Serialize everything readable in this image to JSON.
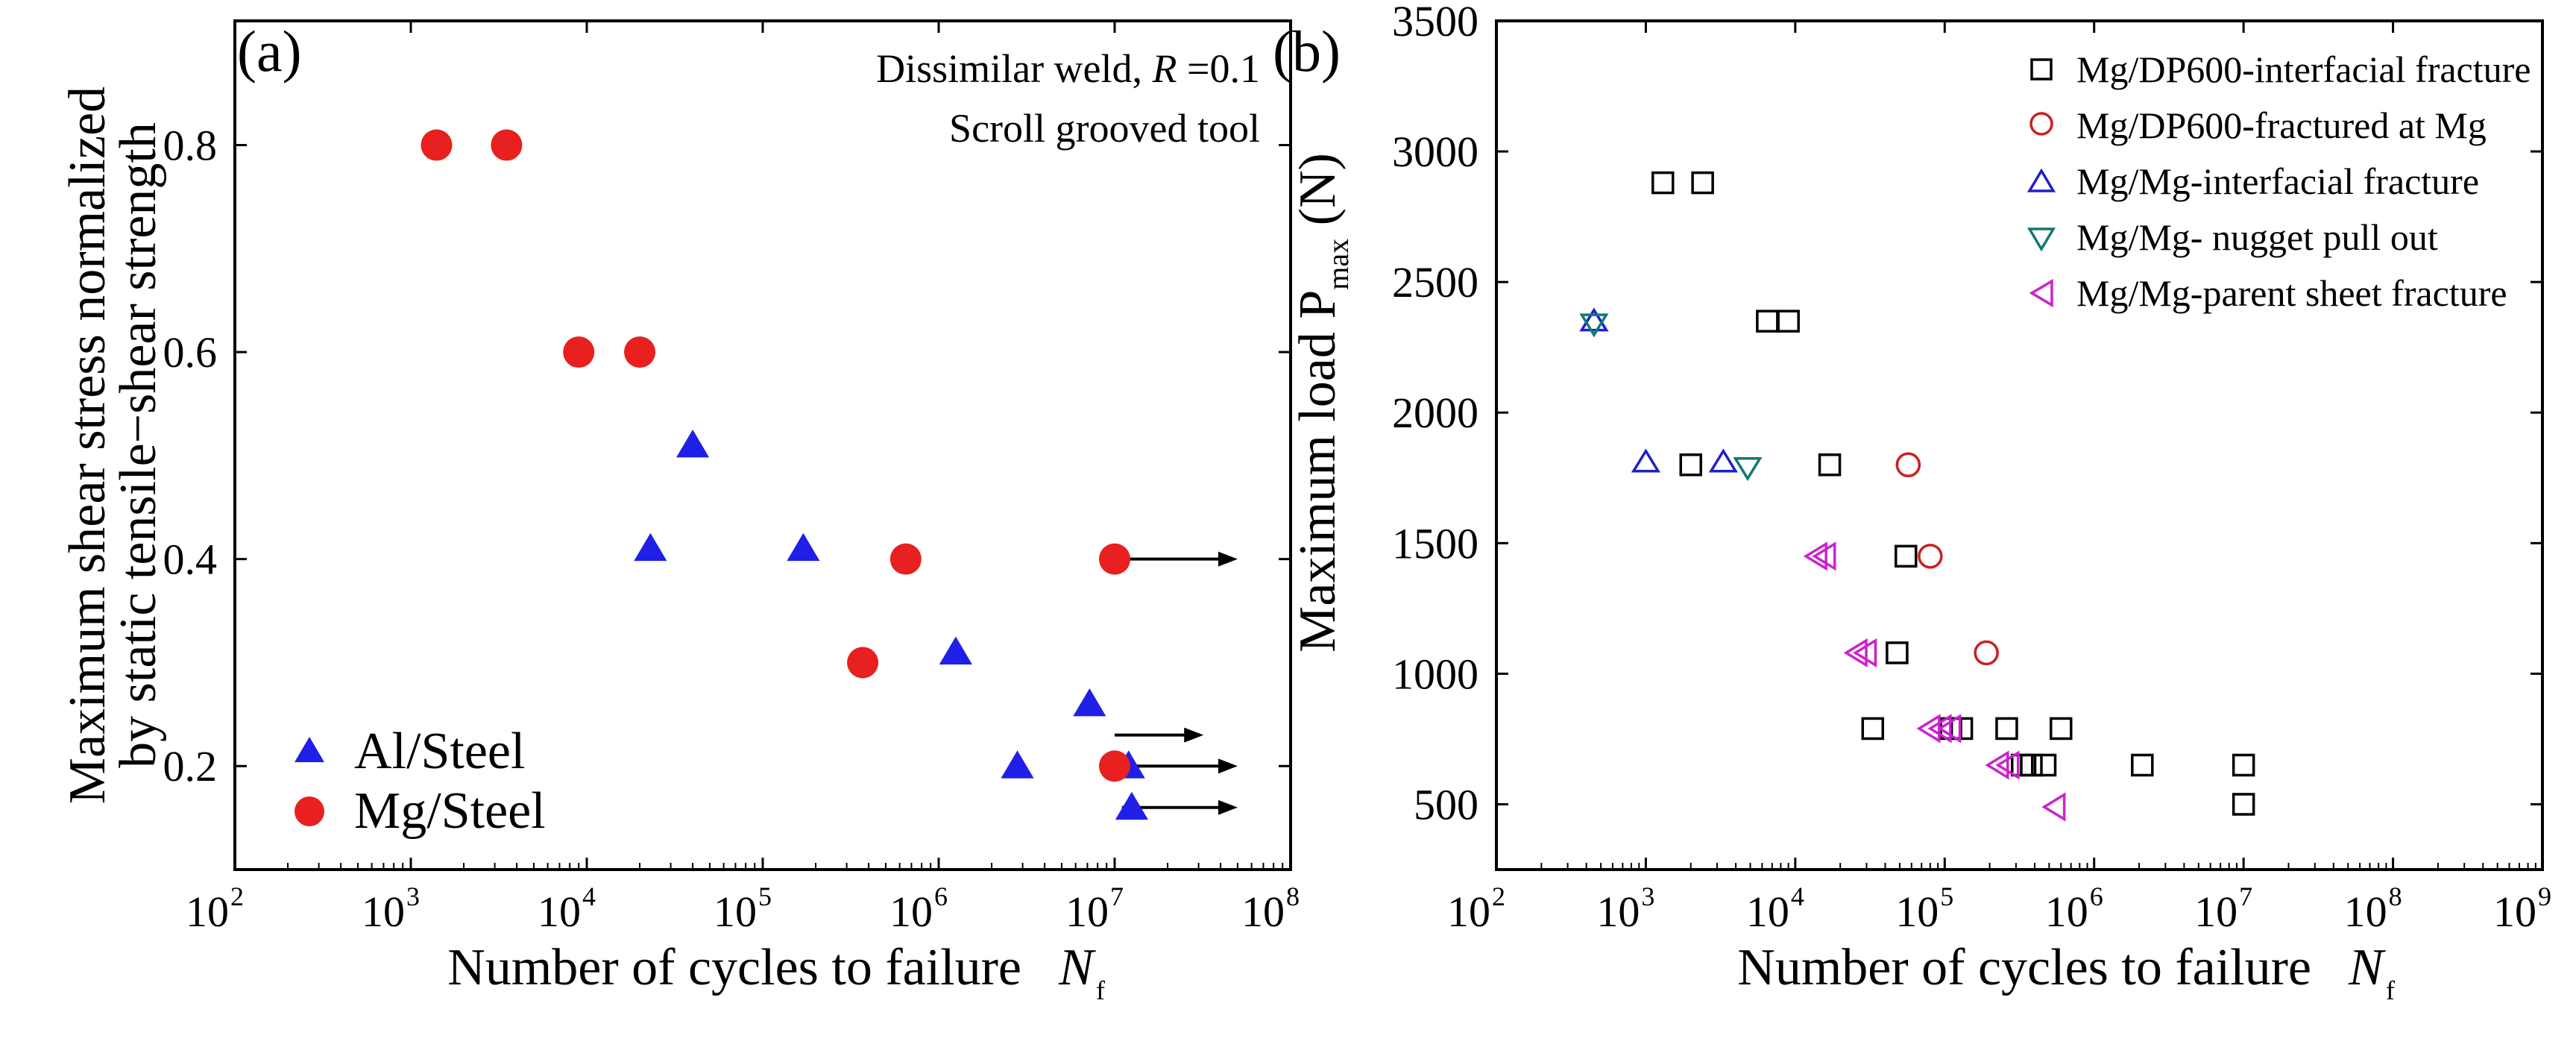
{
  "chart_data": [
    {
      "panel": "(a)",
      "type": "scatter",
      "xscale": "log",
      "xlim_exp": [
        2,
        8
      ],
      "ylim": [
        0.1,
        0.92
      ],
      "x_tick_base": "10",
      "x_ticks": [
        {
          "exp": "2"
        },
        {
          "exp": "3"
        },
        {
          "exp": "4"
        },
        {
          "exp": "5"
        },
        {
          "exp": "6"
        },
        {
          "exp": "7"
        },
        {
          "exp": "8"
        }
      ],
      "y_ticks": [
        {
          "value": 0.2,
          "label": "0.2"
        },
        {
          "value": 0.4,
          "label": "0.4"
        },
        {
          "value": 0.6,
          "label": "0.6"
        },
        {
          "value": 0.8,
          "label": "0.8"
        }
      ],
      "xlabel": "Number of cycles to failure",
      "xlabel_symbol": "N",
      "xlabel_subscript": "f",
      "ylabel_line1": "Maximum shear stress normalized",
      "ylabel_line2": "by static tensile−shear strength",
      "annotation_line1_prefix": "Dissimilar weld,",
      "annotation_line1_symbol": "R",
      "annotation_line1_value": "=0.1",
      "annotation_line2": "Scroll grooved tool",
      "series": [
        {
          "name": "Al/Steel",
          "marker": "triangle-filled",
          "color": "#1f1fe8",
          "points": [
            {
              "x": 40000,
              "y": 0.51
            },
            {
              "x": 23000,
              "y": 0.41
            },
            {
              "x": 170000,
              "y": 0.41
            },
            {
              "x": 1250000,
              "y": 0.31
            },
            {
              "x": 7200000,
              "y": 0.26
            },
            {
              "x": 2800000,
              "y": 0.2
            },
            {
              "x": 12000000,
              "y": 0.2
            },
            {
              "x": 12500000,
              "y": 0.16
            }
          ]
        },
        {
          "name": "Mg/Steel",
          "marker": "circle-filled",
          "color": "#e8201f",
          "points": [
            {
              "x": 1400,
              "y": 0.8
            },
            {
              "x": 3500,
              "y": 0.8
            },
            {
              "x": 9000,
              "y": 0.6
            },
            {
              "x": 20000,
              "y": 0.6
            },
            {
              "x": 650000,
              "y": 0.4
            },
            {
              "x": 10000000,
              "y": 0.4
            },
            {
              "x": 370000,
              "y": 0.3
            },
            {
              "x": 10000000,
              "y": 0.2
            }
          ]
        }
      ],
      "runouts": [
        {
          "x": 10000000,
          "y": 0.4,
          "x_end": 50000000
        },
        {
          "x": 10000000,
          "y": 0.2,
          "x_end": 50000000
        },
        {
          "x": 10000000,
          "y": 0.23,
          "x_end": 32000000
        },
        {
          "x": 11000000,
          "y": 0.16,
          "x_end": 50000000
        }
      ],
      "legend_position": "bottom-left"
    },
    {
      "panel": "(b)",
      "type": "scatter",
      "xscale": "log",
      "xlim_exp": [
        2,
        9
      ],
      "ylim": [
        250,
        3500
      ],
      "x_tick_base": "10",
      "x_ticks": [
        {
          "exp": "2"
        },
        {
          "exp": "3"
        },
        {
          "exp": "4"
        },
        {
          "exp": "5"
        },
        {
          "exp": "6"
        },
        {
          "exp": "7"
        },
        {
          "exp": "8"
        },
        {
          "exp": "9"
        }
      ],
      "y_ticks": [
        {
          "value": 500,
          "label": "500"
        },
        {
          "value": 1000,
          "label": "1000"
        },
        {
          "value": 1500,
          "label": "1500"
        },
        {
          "value": 2000,
          "label": "2000"
        },
        {
          "value": 2500,
          "label": "2500"
        },
        {
          "value": 3000,
          "label": "3000"
        },
        {
          "value": 3500,
          "label": "3500"
        }
      ],
      "xlabel": "Number of cycles to failure",
      "xlabel_symbol": "N",
      "xlabel_subscript": "f",
      "ylabel_prefix": "Maximum load P",
      "ylabel_subscript": "max",
      "ylabel_suffix": " (N)",
      "series": [
        {
          "name": "Mg/DP600-interfacial fracture",
          "marker": "square-open",
          "color": "#000000",
          "points": [
            {
              "x": 1300,
              "y": 2880
            },
            {
              "x": 2400,
              "y": 2880
            },
            {
              "x": 6500,
              "y": 2350
            },
            {
              "x": 9000,
              "y": 2350
            },
            {
              "x": 2000,
              "y": 1800
            },
            {
              "x": 17000,
              "y": 1800
            },
            {
              "x": 55000,
              "y": 1450
            },
            {
              "x": 48000,
              "y": 1080
            },
            {
              "x": 33000,
              "y": 790
            },
            {
              "x": 110000,
              "y": 790
            },
            {
              "x": 130000,
              "y": 790
            },
            {
              "x": 260000,
              "y": 790
            },
            {
              "x": 600000,
              "y": 790
            },
            {
              "x": 330000,
              "y": 650
            },
            {
              "x": 380000,
              "y": 650
            },
            {
              "x": 470000,
              "y": 650
            },
            {
              "x": 2100000,
              "y": 650
            },
            {
              "x": 10000000,
              "y": 650
            },
            {
              "x": 10000000,
              "y": 500
            }
          ]
        },
        {
          "name": "Mg/DP600-fractured at Mg",
          "marker": "circle-open",
          "color": "#cc1f1f",
          "points": [
            {
              "x": 57000,
              "y": 1800
            },
            {
              "x": 80000,
              "y": 1450
            },
            {
              "x": 190000,
              "y": 1080
            }
          ]
        },
        {
          "name": "Mg/Mg-interfacial fracture",
          "marker": "triangle-up-open",
          "color": "#1f1fcc",
          "points": [
            {
              "x": 450,
              "y": 2350
            },
            {
              "x": 1000,
              "y": 1810
            },
            {
              "x": 3300,
              "y": 1810
            }
          ]
        },
        {
          "name": "Mg/Mg- nugget pull out",
          "marker": "triangle-down-open",
          "color": "#0f7a74",
          "points": [
            {
              "x": 450,
              "y": 2340
            },
            {
              "x": 4800,
              "y": 1790
            }
          ]
        },
        {
          "name": "Mg/Mg-parent sheet fracture",
          "marker": "triangle-left-open",
          "color": "#cc22cc",
          "points": [
            {
              "x": 14000,
              "y": 1450
            },
            {
              "x": 16000,
              "y": 1450
            },
            {
              "x": 26000,
              "y": 1080
            },
            {
              "x": 30000,
              "y": 1080
            },
            {
              "x": 80000,
              "y": 790
            },
            {
              "x": 95000,
              "y": 790
            },
            {
              "x": 110000,
              "y": 790
            },
            {
              "x": 230000,
              "y": 650
            },
            {
              "x": 270000,
              "y": 650
            },
            {
              "x": 550000,
              "y": 490
            }
          ]
        }
      ],
      "legend_position": "top-right"
    }
  ]
}
